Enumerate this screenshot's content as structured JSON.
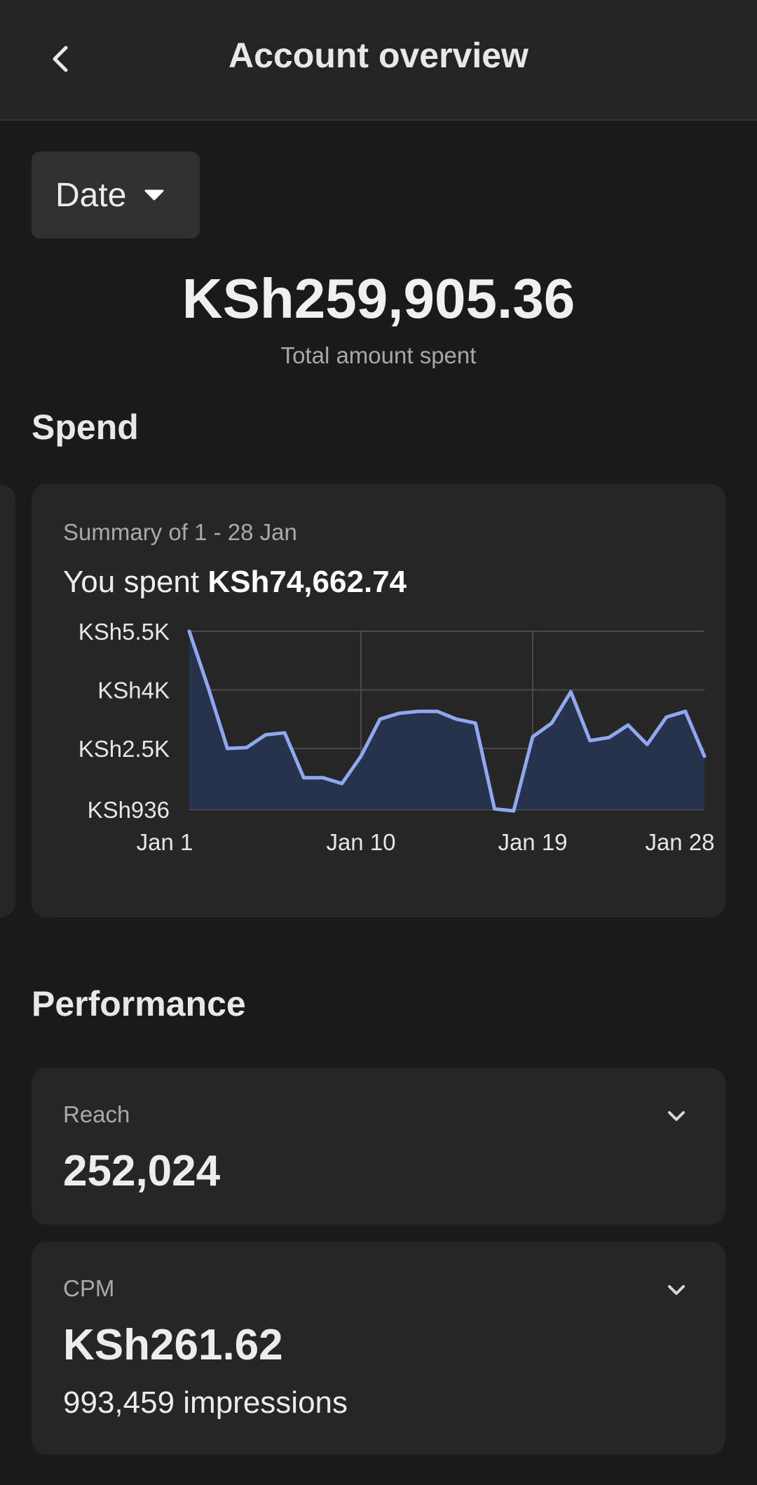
{
  "header": {
    "title": "Account overview",
    "back_icon": "chevron-left-icon"
  },
  "filter": {
    "label": "Date",
    "icon": "caret-down-icon"
  },
  "summary": {
    "total_amount": "KSh259,905.36",
    "total_caption": "Total amount spent"
  },
  "spend": {
    "section_title": "Spend",
    "card_subtitle": "Summary of 1 - 28 Jan",
    "spent_prefix": "You spent",
    "spent_amount": "KSh74,662.74"
  },
  "chart_data": {
    "type": "area",
    "x": [
      1,
      2,
      3,
      4,
      5,
      6,
      7,
      8,
      9,
      10,
      11,
      12,
      13,
      14,
      15,
      16,
      17,
      18,
      19,
      20,
      21,
      22,
      23,
      24,
      25,
      26,
      27,
      28
    ],
    "values": [
      5500,
      4050,
      2500,
      2520,
      2850,
      2900,
      1750,
      1750,
      1600,
      2300,
      3250,
      3400,
      3450,
      3450,
      3250,
      3150,
      950,
      900,
      2800,
      3150,
      3950,
      2700,
      2780,
      3100,
      2600,
      3300,
      3450,
      2300
    ],
    "x_ticks": [
      "Jan 1",
      "Jan 10",
      "Jan 19",
      "Jan 28"
    ],
    "x_tick_positions": [
      1,
      10,
      19,
      28
    ],
    "y_ticks": [
      "KSh5.5K",
      "KSh4K",
      "KSh2.5K",
      "KSh936"
    ],
    "y_tick_values": [
      5500,
      4000,
      2500,
      936
    ],
    "ylim": [
      936,
      5500
    ],
    "grid": true,
    "line_color": "#8fa8f0",
    "fill_color": "#27324c"
  },
  "performance": {
    "section_title": "Performance",
    "reach": {
      "label": "Reach",
      "value": "252,024",
      "icon": "chevron-down-icon"
    },
    "cpm": {
      "label": "CPM",
      "value": "KSh261.62",
      "sub": "993,459 impressions",
      "icon": "chevron-down-icon"
    }
  }
}
